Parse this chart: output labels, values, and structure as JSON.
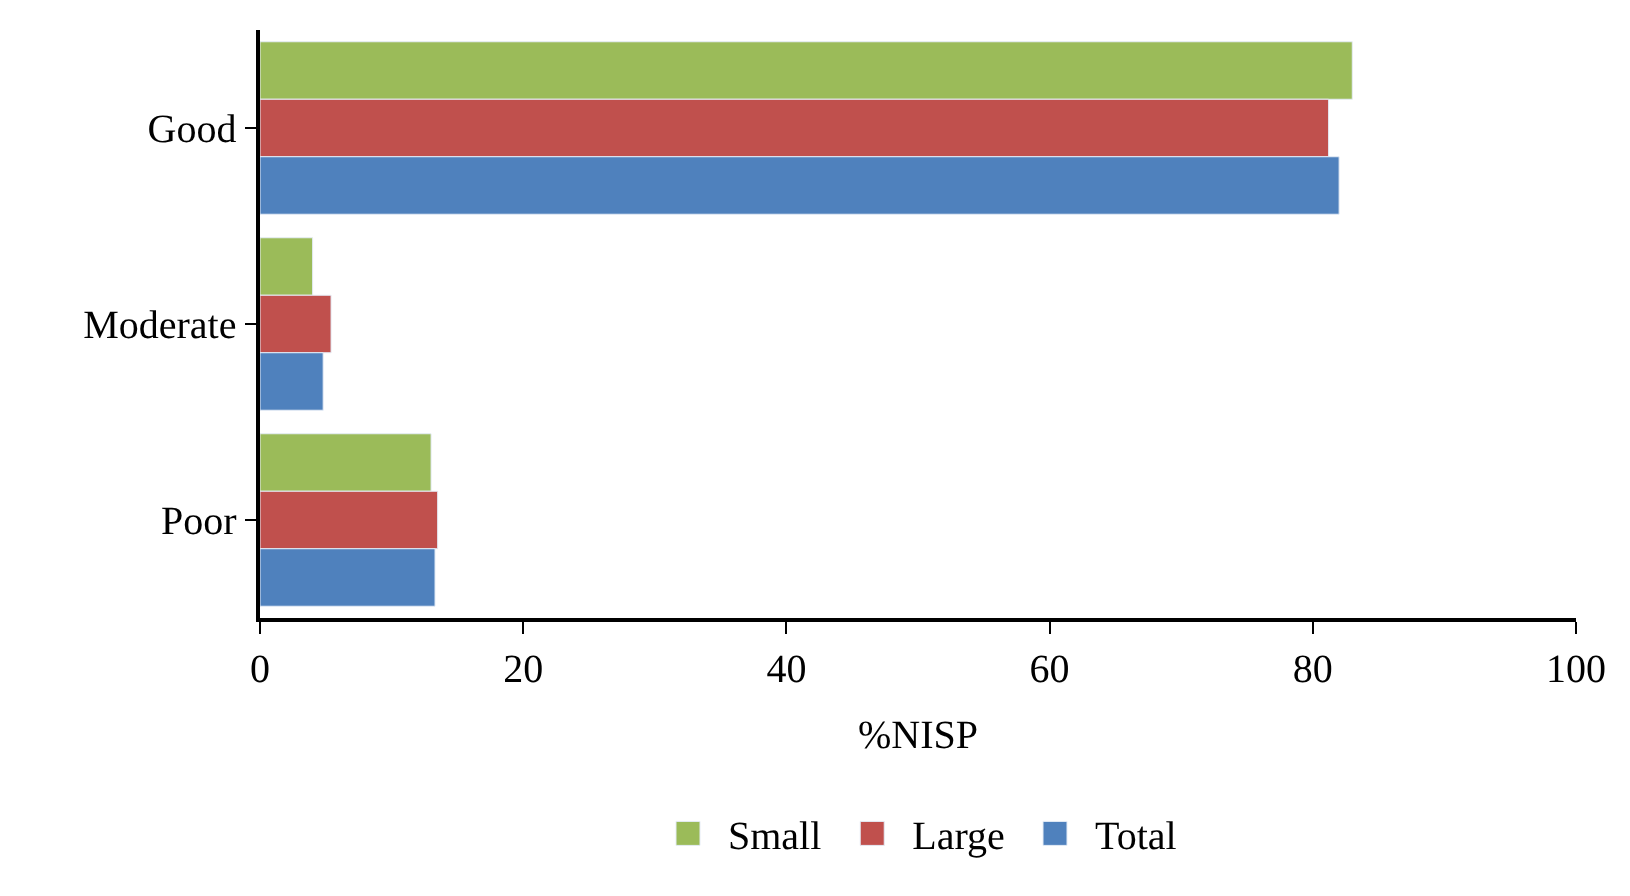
{
  "chart_data": {
    "type": "bar",
    "orientation": "horizontal",
    "xlabel": "%NISP",
    "categories": [
      "Good",
      "Moderate",
      "Poor"
    ],
    "series": [
      {
        "name": "Small",
        "color": "#9bbb59",
        "values": [
          83.0,
          4.0,
          13.0
        ]
      },
      {
        "name": "Large",
        "color": "#c0504d",
        "values": [
          81.2,
          5.4,
          13.5
        ]
      },
      {
        "name": "Total",
        "color": "#4f81bd",
        "values": [
          82.0,
          4.8,
          13.3
        ]
      }
    ],
    "xlim": [
      0,
      100
    ],
    "xticks": [
      0,
      20,
      40,
      60,
      80,
      100
    ],
    "legend": "bottom"
  }
}
